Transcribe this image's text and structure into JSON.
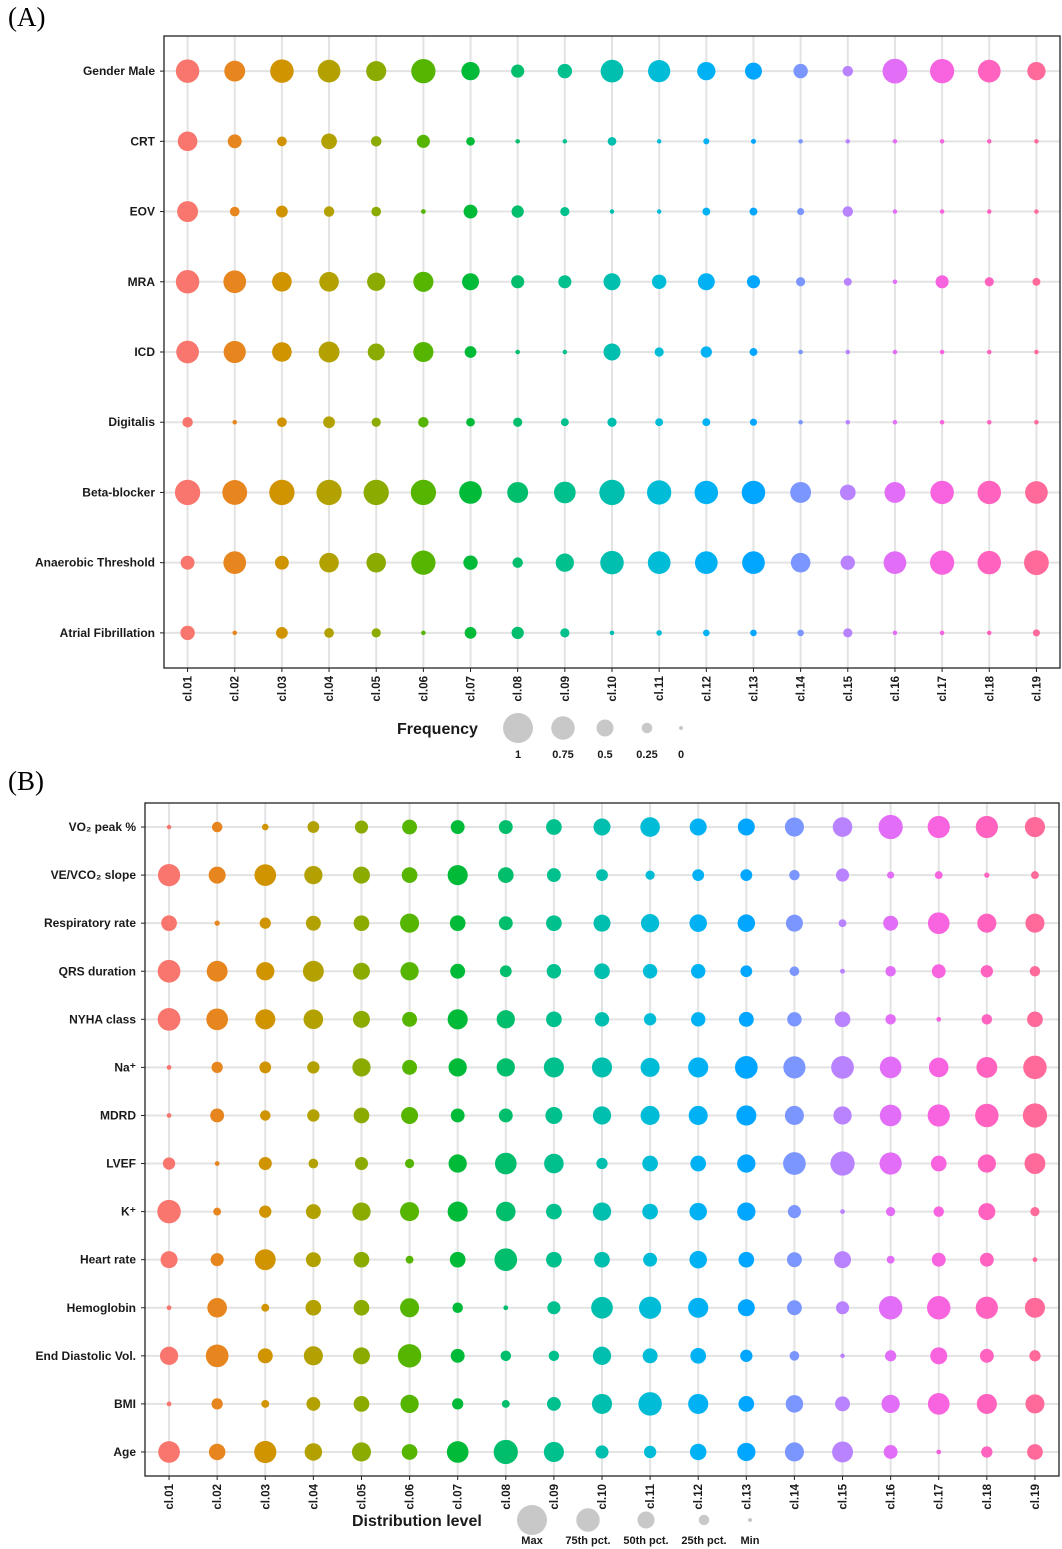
{
  "panels": [
    {
      "tag": "(A)"
    },
    {
      "tag": "(B)"
    }
  ],
  "chart_data": [
    {
      "type": "scatter",
      "subtype": "dot-plot",
      "panel": "(A)",
      "clusters": [
        "cl.01",
        "cl.02",
        "cl.03",
        "cl.04",
        "cl.05",
        "cl.06",
        "cl.07",
        "cl.08",
        "cl.09",
        "cl.10",
        "cl.11",
        "cl.12",
        "cl.13",
        "cl.14",
        "cl.15",
        "cl.16",
        "cl.17",
        "cl.18",
        "cl.19"
      ],
      "variables": [
        "Gender Male",
        "CRT",
        "EOV",
        "MRA",
        "ICD",
        "Digitalis",
        "Beta-blocker",
        "Anaerobic Threshold",
        "Atrial Fibrillation"
      ],
      "size_legend": {
        "title": "Frequency",
        "labels": [
          "1",
          "0.75",
          "0.5",
          "0.25",
          "0"
        ],
        "values": [
          1,
          0.75,
          0.5,
          0.25,
          0
        ]
      },
      "values": [
        [
          0.75,
          0.65,
          0.75,
          0.72,
          0.62,
          0.78,
          0.55,
          0.35,
          0.4,
          0.72,
          0.7,
          0.55,
          0.5,
          0.4,
          0.25,
          0.8,
          0.78,
          0.72,
          0.55
        ],
        [
          0.6,
          0.38,
          0.22,
          0.45,
          0.25,
          0.35,
          0.18,
          0.02,
          0.02,
          0.18,
          0.02,
          0.08,
          0.04,
          0.02,
          0.02,
          0.02,
          0.02,
          0.02,
          0.02
        ],
        [
          0.65,
          0.22,
          0.3,
          0.25,
          0.22,
          0.03,
          0.38,
          0.32,
          0.2,
          0.02,
          0.02,
          0.15,
          0.15,
          0.12,
          0.25,
          0.02,
          0.02,
          0.02,
          0.02
        ],
        [
          0.75,
          0.72,
          0.6,
          0.6,
          0.55,
          0.62,
          0.5,
          0.35,
          0.35,
          0.5,
          0.4,
          0.5,
          0.35,
          0.2,
          0.15,
          0.02,
          0.35,
          0.2,
          0.15
        ],
        [
          0.72,
          0.7,
          0.6,
          0.65,
          0.5,
          0.62,
          0.3,
          0.02,
          0.02,
          0.5,
          0.2,
          0.28,
          0.15,
          0.02,
          0.02,
          0.02,
          0.02,
          0.02,
          0.02
        ],
        [
          0.25,
          0.02,
          0.22,
          0.3,
          0.2,
          0.25,
          0.18,
          0.2,
          0.15,
          0.2,
          0.15,
          0.15,
          0.12,
          0.02,
          0.02,
          0.02,
          0.02,
          0.02,
          0.02
        ],
        [
          0.82,
          0.8,
          0.82,
          0.82,
          0.82,
          0.82,
          0.72,
          0.65,
          0.68,
          0.82,
          0.78,
          0.75,
          0.75,
          0.65,
          0.45,
          0.65,
          0.75,
          0.75,
          0.72
        ],
        [
          0.38,
          0.72,
          0.38,
          0.6,
          0.6,
          0.78,
          0.4,
          0.25,
          0.55,
          0.75,
          0.72,
          0.72,
          0.72,
          0.6,
          0.4,
          0.72,
          0.78,
          0.75,
          0.8
        ],
        [
          0.4,
          0.02,
          0.3,
          0.22,
          0.2,
          0.02,
          0.3,
          0.32,
          0.2,
          0.02,
          0.06,
          0.1,
          0.1,
          0.1,
          0.2,
          0.02,
          0.02,
          0.02,
          0.12
        ]
      ]
    },
    {
      "type": "scatter",
      "subtype": "dot-plot",
      "panel": "(B)",
      "clusters": [
        "cl.01",
        "cl.02",
        "cl.03",
        "cl.04",
        "cl.05",
        "cl.06",
        "cl.07",
        "cl.08",
        "cl.09",
        "cl.10",
        "cl.11",
        "cl.12",
        "cl.13",
        "cl.14",
        "cl.15",
        "cl.16",
        "cl.17",
        "cl.18",
        "cl.19"
      ],
      "variables": [
        "VO₂ peak %",
        "VE/VCO₂ slope",
        "Respiratory rate",
        "QRS duration",
        "NYHA class",
        "Na⁺",
        "MDRD",
        "LVEF",
        "K⁺",
        "Heart rate",
        "Hemoglobin",
        "End Diastolic Vol.",
        "BMI",
        "Age"
      ],
      "size_legend": {
        "title": "Distribution level",
        "labels": [
          "Max",
          "75th pct.",
          "50th pct.",
          "25th pct.",
          "Min"
        ],
        "values": [
          1,
          0.75,
          0.5,
          0.25,
          0
        ]
      },
      "values": [
        [
          0.02,
          0.25,
          0.1,
          0.3,
          0.35,
          0.42,
          0.38,
          0.38,
          0.45,
          0.5,
          0.6,
          0.5,
          0.5,
          0.58,
          0.6,
          0.78,
          0.7,
          0.7,
          0.62
        ],
        [
          0.7,
          0.5,
          0.68,
          0.55,
          0.5,
          0.45,
          0.62,
          0.45,
          0.38,
          0.3,
          0.2,
          0.3,
          0.3,
          0.25,
          0.35,
          0.12,
          0.15,
          0.05,
          0.15
        ],
        [
          0.45,
          0.05,
          0.28,
          0.42,
          0.45,
          0.58,
          0.45,
          0.38,
          0.45,
          0.5,
          0.55,
          0.52,
          0.52,
          0.5,
          0.15,
          0.42,
          0.68,
          0.58,
          0.58
        ],
        [
          0.72,
          0.65,
          0.55,
          0.65,
          0.5,
          0.55,
          0.42,
          0.3,
          0.4,
          0.45,
          0.4,
          0.4,
          0.3,
          0.22,
          0.04,
          0.25,
          0.38,
          0.32,
          0.25
        ],
        [
          0.72,
          0.68,
          0.62,
          0.6,
          0.5,
          0.42,
          0.62,
          0.55,
          0.45,
          0.4,
          0.32,
          0.4,
          0.42,
          0.4,
          0.45,
          0.25,
          0.03,
          0.25,
          0.45
        ],
        [
          0.03,
          0.28,
          0.3,
          0.32,
          0.55,
          0.42,
          0.55,
          0.55,
          0.62,
          0.62,
          0.58,
          0.62,
          0.72,
          0.7,
          0.72,
          0.68,
          0.6,
          0.65,
          0.75
        ],
        [
          0.03,
          0.38,
          0.25,
          0.32,
          0.45,
          0.5,
          0.38,
          0.38,
          0.5,
          0.55,
          0.58,
          0.58,
          0.62,
          0.58,
          0.55,
          0.68,
          0.7,
          0.75,
          0.78
        ],
        [
          0.32,
          0.03,
          0.35,
          0.22,
          0.35,
          0.2,
          0.55,
          0.68,
          0.6,
          0.28,
          0.45,
          0.45,
          0.55,
          0.72,
          0.78,
          0.7,
          0.45,
          0.55,
          0.65
        ],
        [
          0.75,
          0.15,
          0.32,
          0.42,
          0.55,
          0.58,
          0.62,
          0.6,
          0.45,
          0.55,
          0.45,
          0.52,
          0.55,
          0.35,
          0.03,
          0.2,
          0.25,
          0.5,
          0.2
        ],
        [
          0.5,
          0.35,
          0.65,
          0.42,
          0.45,
          0.15,
          0.45,
          0.72,
          0.45,
          0.45,
          0.38,
          0.52,
          0.45,
          0.42,
          0.5,
          0.15,
          0.38,
          0.38,
          0.03
        ],
        [
          0.03,
          0.6,
          0.15,
          0.45,
          0.45,
          0.58,
          0.25,
          0.03,
          0.35,
          0.68,
          0.7,
          0.62,
          0.5,
          0.42,
          0.35,
          0.75,
          0.75,
          0.7,
          0.62
        ],
        [
          0.55,
          0.72,
          0.42,
          0.58,
          0.5,
          0.75,
          0.38,
          0.25,
          0.25,
          0.55,
          0.42,
          0.45,
          0.32,
          0.22,
          0.02,
          0.28,
          0.5,
          0.38,
          0.28
        ],
        [
          0.03,
          0.28,
          0.15,
          0.38,
          0.45,
          0.55,
          0.28,
          0.15,
          0.38,
          0.62,
          0.75,
          0.62,
          0.45,
          0.52,
          0.42,
          0.55,
          0.68,
          0.62,
          0.58
        ],
        [
          0.68,
          0.48,
          0.7,
          0.52,
          0.58,
          0.45,
          0.68,
          0.78,
          0.62,
          0.35,
          0.32,
          0.48,
          0.55,
          0.58,
          0.65,
          0.38,
          0.03,
          0.28,
          0.45
        ]
      ]
    }
  ]
}
